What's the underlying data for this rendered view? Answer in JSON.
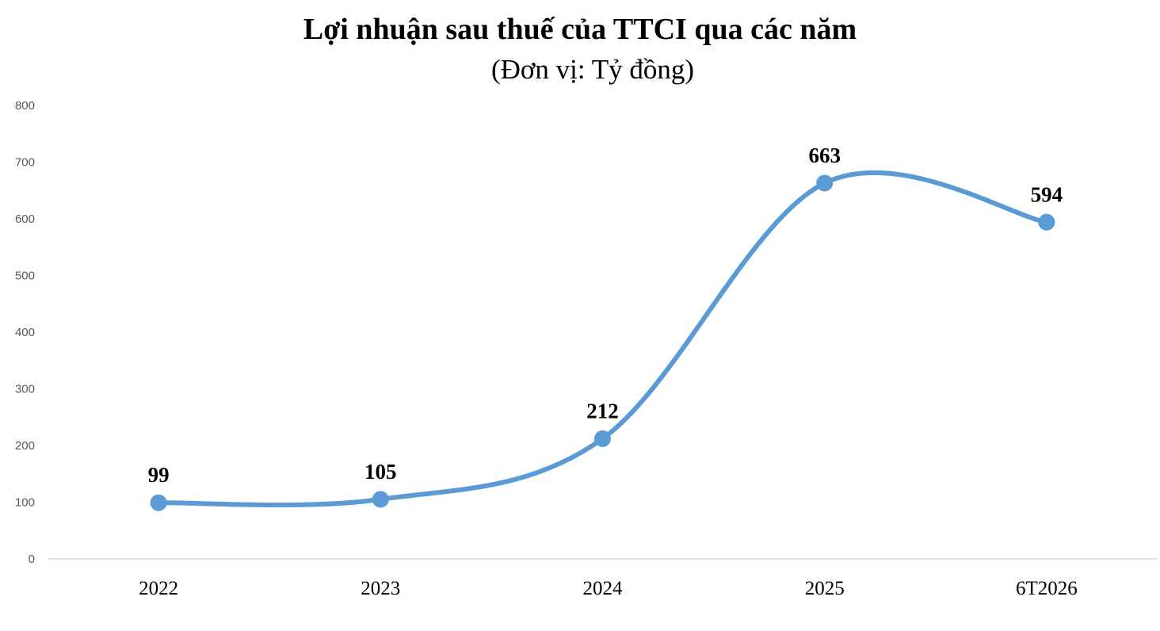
{
  "chart_data": {
    "type": "line",
    "title": "Lợi nhuận sau thuế của TTCI qua các năm",
    "subtitle": "(Đơn vị: Tỷ đồng)",
    "categories": [
      "2022",
      "2023",
      "2024",
      "2025",
      "6T2026"
    ],
    "series": [
      {
        "values": [
          99,
          105,
          212,
          663,
          594
        ],
        "color": "#5B9BD5",
        "smooth": true,
        "markers": true,
        "data_labels": [
          "99",
          "105",
          "212",
          "663",
          "594"
        ]
      }
    ],
    "yticks": [
      "0",
      "100",
      "200",
      "300",
      "400",
      "500",
      "600",
      "700",
      "800"
    ],
    "ylim": [
      0,
      800
    ],
    "grid": false,
    "legend": "none",
    "xlabel": "",
    "ylabel": ""
  }
}
